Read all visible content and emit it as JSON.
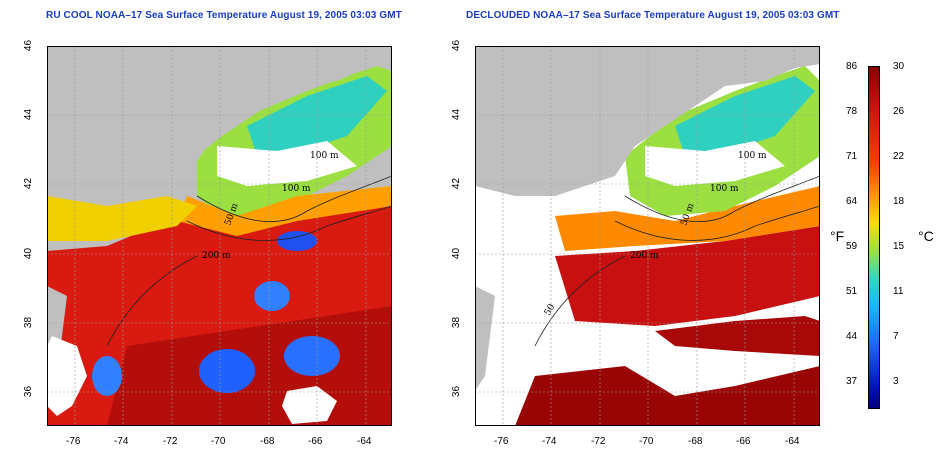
{
  "left_title": "RU COOL NOAA–17 Sea Surface Temperature August 19, 2005 03:03 GMT",
  "right_title": "DECLOUDED NOAA–17 Sea Surface Temperature August 19, 2005 03:03 GMT",
  "x_ticks": [
    "-76",
    "-74",
    "-72",
    "-70",
    "-68",
    "-66",
    "-64"
  ],
  "y_ticks": [
    "36",
    "38",
    "40",
    "42",
    "44",
    "46"
  ],
  "contours": [
    "50 m",
    "100 m",
    "100 m",
    "200 m",
    "50"
  ],
  "colorbar": {
    "fahrenheit_unit": "°F",
    "celsius_unit": "°C",
    "fahrenheit_labels": [
      "86",
      "78",
      "71",
      "64",
      "59",
      "51",
      "44",
      "37"
    ],
    "celsius_labels": [
      "30",
      "26",
      "22",
      "18",
      "15",
      "11",
      "7",
      "3"
    ]
  },
  "colors": {
    "land": "#bfbfbf",
    "cloud": "#ffffff",
    "warm": "#d01010",
    "hot": "#8a0000",
    "cool": "#30d8c0",
    "cold": "#2060ff"
  }
}
